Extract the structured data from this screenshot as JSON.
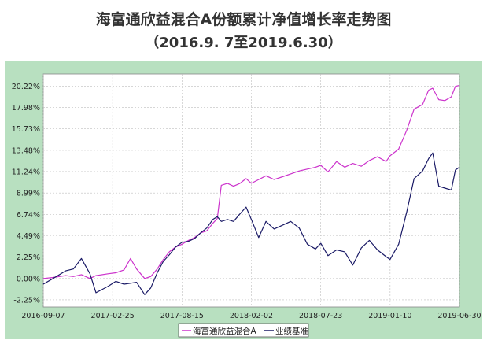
{
  "title": "海富通欣益混合A份额累计净值增长率走势图",
  "subtitle": "（2016.9. 7至2019.6.30）",
  "colors": {
    "background_frame": "#b8e0c0",
    "plot_area": "#ffffff",
    "grid": "#bfbfbf",
    "fund": "#cc33cc",
    "benchmark": "#1a1a66"
  },
  "chart_data": {
    "type": "line",
    "title": "海富通欣益混合A份额累计净值增长率走势图",
    "subtitle": "（2016.9. 7至2019.6.30）",
    "xlabel": "",
    "ylabel": "",
    "x_range": [
      "2016-09-07",
      "2019-06-30"
    ],
    "ylim": [
      -3.0,
      21.5
    ],
    "grid": true,
    "legend_position": "bottom-center",
    "x_ticks": [
      "2016-09-07",
      "2017-02-25",
      "2017-08-15",
      "2018-02-02",
      "2018-07-23",
      "2019-01-10",
      "2019-06-30"
    ],
    "y_ticks": [
      -2.25,
      0.0,
      2.25,
      4.49,
      6.74,
      8.99,
      11.24,
      13.48,
      15.73,
      17.98,
      20.22
    ],
    "y_tick_labels": [
      "-2.25%",
      "0.00%",
      "2.25%",
      "4.49%",
      "6.74%",
      "8.99%",
      "11.24%",
      "13.48%",
      "15.73%",
      "17.98%",
      "20.22%"
    ],
    "legend": [
      "海富通欣益混合A",
      "业绩基准"
    ],
    "series": [
      {
        "name": "海富通欣益混合A",
        "color": "#cc33cc",
        "points": [
          [
            "2016-09-07",
            0.0
          ],
          [
            "2016-10-01",
            0.1
          ],
          [
            "2016-11-01",
            0.3
          ],
          [
            "2016-11-20",
            0.2
          ],
          [
            "2016-12-10",
            0.4
          ],
          [
            "2016-12-31",
            0.0
          ],
          [
            "2017-01-15",
            0.3
          ],
          [
            "2017-02-15",
            0.5
          ],
          [
            "2017-03-05",
            0.6
          ],
          [
            "2017-03-25",
            0.9
          ],
          [
            "2017-04-10",
            2.1
          ],
          [
            "2017-04-25",
            1.0
          ],
          [
            "2017-05-15",
            0.0
          ],
          [
            "2017-05-30",
            0.2
          ],
          [
            "2017-06-15",
            1.0
          ],
          [
            "2017-06-30",
            2.0
          ],
          [
            "2017-07-15",
            2.8
          ],
          [
            "2017-07-30",
            3.3
          ],
          [
            "2017-08-15",
            3.6
          ],
          [
            "2017-08-31",
            4.0
          ],
          [
            "2017-09-15",
            4.3
          ],
          [
            "2017-09-30",
            4.8
          ],
          [
            "2017-10-15",
            5.0
          ],
          [
            "2017-10-30",
            5.8
          ],
          [
            "2017-11-10",
            6.3
          ],
          [
            "2017-11-20",
            9.8
          ],
          [
            "2017-12-05",
            10.0
          ],
          [
            "2017-12-20",
            9.7
          ],
          [
            "2018-01-05",
            10.0
          ],
          [
            "2018-01-20",
            10.5
          ],
          [
            "2018-02-02",
            10.0
          ],
          [
            "2018-02-20",
            10.4
          ],
          [
            "2018-03-10",
            10.8
          ],
          [
            "2018-03-30",
            10.4
          ],
          [
            "2018-04-20",
            10.7
          ],
          [
            "2018-05-10",
            11.0
          ],
          [
            "2018-05-31",
            11.3
          ],
          [
            "2018-06-20",
            11.5
          ],
          [
            "2018-07-10",
            11.7
          ],
          [
            "2018-07-23",
            11.9
          ],
          [
            "2018-08-10",
            11.2
          ],
          [
            "2018-08-31",
            12.3
          ],
          [
            "2018-09-20",
            11.7
          ],
          [
            "2018-10-10",
            12.1
          ],
          [
            "2018-10-31",
            11.8
          ],
          [
            "2018-11-20",
            12.4
          ],
          [
            "2018-12-10",
            12.8
          ],
          [
            "2018-12-31",
            12.3
          ],
          [
            "2019-01-10",
            12.9
          ],
          [
            "2019-01-31",
            13.6
          ],
          [
            "2019-02-20",
            15.6
          ],
          [
            "2019-03-10",
            17.8
          ],
          [
            "2019-03-31",
            18.3
          ],
          [
            "2019-04-15",
            19.8
          ],
          [
            "2019-04-25",
            20.0
          ],
          [
            "2019-05-10",
            18.8
          ],
          [
            "2019-05-25",
            18.7
          ],
          [
            "2019-06-10",
            19.1
          ],
          [
            "2019-06-20",
            20.2
          ],
          [
            "2019-06-30",
            20.3
          ]
        ]
      },
      {
        "name": "业绩基准",
        "color": "#1a1a66",
        "points": [
          [
            "2016-09-07",
            -0.6
          ],
          [
            "2016-10-01",
            0.0
          ],
          [
            "2016-11-01",
            0.8
          ],
          [
            "2016-11-20",
            1.0
          ],
          [
            "2016-12-10",
            2.1
          ],
          [
            "2016-12-31",
            0.5
          ],
          [
            "2017-01-15",
            -1.5
          ],
          [
            "2017-02-15",
            -0.8
          ],
          [
            "2017-03-05",
            -0.3
          ],
          [
            "2017-03-25",
            -0.6
          ],
          [
            "2017-04-10",
            -0.5
          ],
          [
            "2017-04-25",
            -0.4
          ],
          [
            "2017-05-15",
            -1.7
          ],
          [
            "2017-05-30",
            -1.0
          ],
          [
            "2017-06-15",
            0.6
          ],
          [
            "2017-06-30",
            1.8
          ],
          [
            "2017-07-15",
            2.5
          ],
          [
            "2017-07-30",
            3.3
          ],
          [
            "2017-08-15",
            3.8
          ],
          [
            "2017-08-31",
            3.9
          ],
          [
            "2017-09-15",
            4.2
          ],
          [
            "2017-09-30",
            4.8
          ],
          [
            "2017-10-15",
            5.3
          ],
          [
            "2017-10-30",
            6.2
          ],
          [
            "2017-11-10",
            6.5
          ],
          [
            "2017-11-20",
            6.0
          ],
          [
            "2017-12-05",
            6.2
          ],
          [
            "2017-12-20",
            6.0
          ],
          [
            "2018-01-05",
            6.8
          ],
          [
            "2018-01-20",
            7.5
          ],
          [
            "2018-02-02",
            6.2
          ],
          [
            "2018-02-20",
            4.3
          ],
          [
            "2018-03-10",
            6.0
          ],
          [
            "2018-03-30",
            5.2
          ],
          [
            "2018-04-20",
            5.6
          ],
          [
            "2018-05-10",
            6.0
          ],
          [
            "2018-05-31",
            5.3
          ],
          [
            "2018-06-20",
            3.6
          ],
          [
            "2018-07-10",
            3.1
          ],
          [
            "2018-07-23",
            3.7
          ],
          [
            "2018-08-10",
            2.4
          ],
          [
            "2018-08-31",
            3.0
          ],
          [
            "2018-09-20",
            2.8
          ],
          [
            "2018-10-10",
            1.4
          ],
          [
            "2018-10-31",
            3.2
          ],
          [
            "2018-11-20",
            4.0
          ],
          [
            "2018-12-10",
            3.0
          ],
          [
            "2018-12-31",
            2.3
          ],
          [
            "2019-01-10",
            2.0
          ],
          [
            "2019-01-31",
            3.6
          ],
          [
            "2019-02-20",
            7.0
          ],
          [
            "2019-03-10",
            10.5
          ],
          [
            "2019-03-31",
            11.3
          ],
          [
            "2019-04-15",
            12.6
          ],
          [
            "2019-04-25",
            13.2
          ],
          [
            "2019-05-10",
            9.7
          ],
          [
            "2019-05-25",
            9.5
          ],
          [
            "2019-06-10",
            9.3
          ],
          [
            "2019-06-20",
            11.4
          ],
          [
            "2019-06-30",
            11.7
          ]
        ]
      }
    ]
  }
}
